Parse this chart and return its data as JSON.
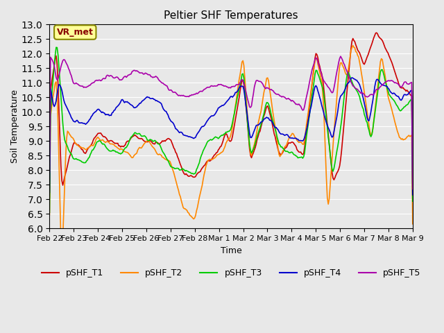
{
  "title": "Peltier SHF Temperatures",
  "xlabel": "Time",
  "ylabel": "Soil Temperature",
  "ylim": [
    6.0,
    13.0
  ],
  "yticks": [
    6.0,
    6.5,
    7.0,
    7.5,
    8.0,
    8.5,
    9.0,
    9.5,
    10.0,
    10.5,
    11.0,
    11.5,
    12.0,
    12.5,
    13.0
  ],
  "background_color": "#e8e8e8",
  "plot_bg_color": "#e8e8e8",
  "series_colors": {
    "pSHF_T1": "#cc0000",
    "pSHF_T2": "#ff8800",
    "pSHF_T3": "#00cc00",
    "pSHF_T4": "#0000cc",
    "pSHF_T5": "#aa00aa"
  },
  "xtick_labels": [
    "Feb 22",
    "Feb 23",
    "Feb 24",
    "Feb 25",
    "Feb 26",
    "Feb 27",
    "Feb 28",
    "Mar 1",
    "Mar 2",
    "Mar 3",
    "Mar 4",
    "Mar 5",
    "Mar 6",
    "Mar 7",
    "Mar 8",
    "Mar 9"
  ],
  "annotation_text": "VR_met",
  "annotation_bg": "#ffff99",
  "annotation_border": "#888800",
  "annotation_text_color": "#880000",
  "legend_entries": [
    "pSHF_T1",
    "pSHF_T2",
    "pSHF_T3",
    "pSHF_T4",
    "pSHF_T5"
  ]
}
